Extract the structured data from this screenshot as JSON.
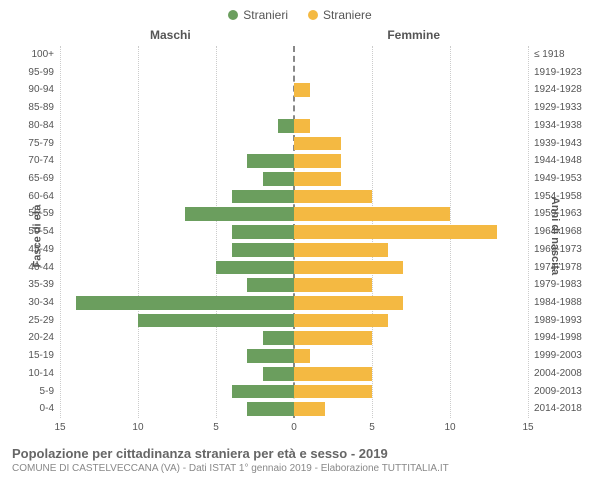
{
  "legend": {
    "male": {
      "label": "Stranieri",
      "color": "#6b9e5e"
    },
    "female": {
      "label": "Straniere",
      "color": "#f4b942"
    }
  },
  "headers": {
    "left": "Maschi",
    "right": "Femmine"
  },
  "axis_labels": {
    "left": "Fasce di età",
    "right": "Anni di nascita"
  },
  "xticks": [
    15,
    10,
    5,
    0,
    5,
    10,
    15
  ],
  "xmax": 15,
  "grid_color": "#cccccc",
  "center_line_color": "#888888",
  "bg": "#ffffff",
  "rows": [
    {
      "age": "100+",
      "birth": "≤ 1918",
      "m": 0,
      "f": 0
    },
    {
      "age": "95-99",
      "birth": "1919-1923",
      "m": 0,
      "f": 0
    },
    {
      "age": "90-94",
      "birth": "1924-1928",
      "m": 0,
      "f": 1
    },
    {
      "age": "85-89",
      "birth": "1929-1933",
      "m": 0,
      "f": 0
    },
    {
      "age": "80-84",
      "birth": "1934-1938",
      "m": 1,
      "f": 1
    },
    {
      "age": "75-79",
      "birth": "1939-1943",
      "m": 0,
      "f": 3
    },
    {
      "age": "70-74",
      "birth": "1944-1948",
      "m": 3,
      "f": 3
    },
    {
      "age": "65-69",
      "birth": "1949-1953",
      "m": 2,
      "f": 3
    },
    {
      "age": "60-64",
      "birth": "1954-1958",
      "m": 4,
      "f": 5
    },
    {
      "age": "55-59",
      "birth": "1959-1963",
      "m": 7,
      "f": 10
    },
    {
      "age": "50-54",
      "birth": "1964-1968",
      "m": 4,
      "f": 13
    },
    {
      "age": "45-49",
      "birth": "1969-1973",
      "m": 4,
      "f": 6
    },
    {
      "age": "40-44",
      "birth": "1974-1978",
      "m": 5,
      "f": 7
    },
    {
      "age": "35-39",
      "birth": "1979-1983",
      "m": 3,
      "f": 5
    },
    {
      "age": "30-34",
      "birth": "1984-1988",
      "m": 14,
      "f": 7
    },
    {
      "age": "25-29",
      "birth": "1989-1993",
      "m": 10,
      "f": 6
    },
    {
      "age": "20-24",
      "birth": "1994-1998",
      "m": 2,
      "f": 5
    },
    {
      "age": "15-19",
      "birth": "1999-2003",
      "m": 3,
      "f": 1
    },
    {
      "age": "10-14",
      "birth": "2004-2008",
      "m": 2,
      "f": 5
    },
    {
      "age": "5-9",
      "birth": "2009-2013",
      "m": 4,
      "f": 5
    },
    {
      "age": "0-4",
      "birth": "2014-2018",
      "m": 3,
      "f": 2
    }
  ],
  "title": "Popolazione per cittadinanza straniera per età e sesso - 2019",
  "subtitle": "COMUNE DI CASTELVECCANA (VA) - Dati ISTAT 1° gennaio 2019 - Elaborazione TUTTITALIA.IT"
}
